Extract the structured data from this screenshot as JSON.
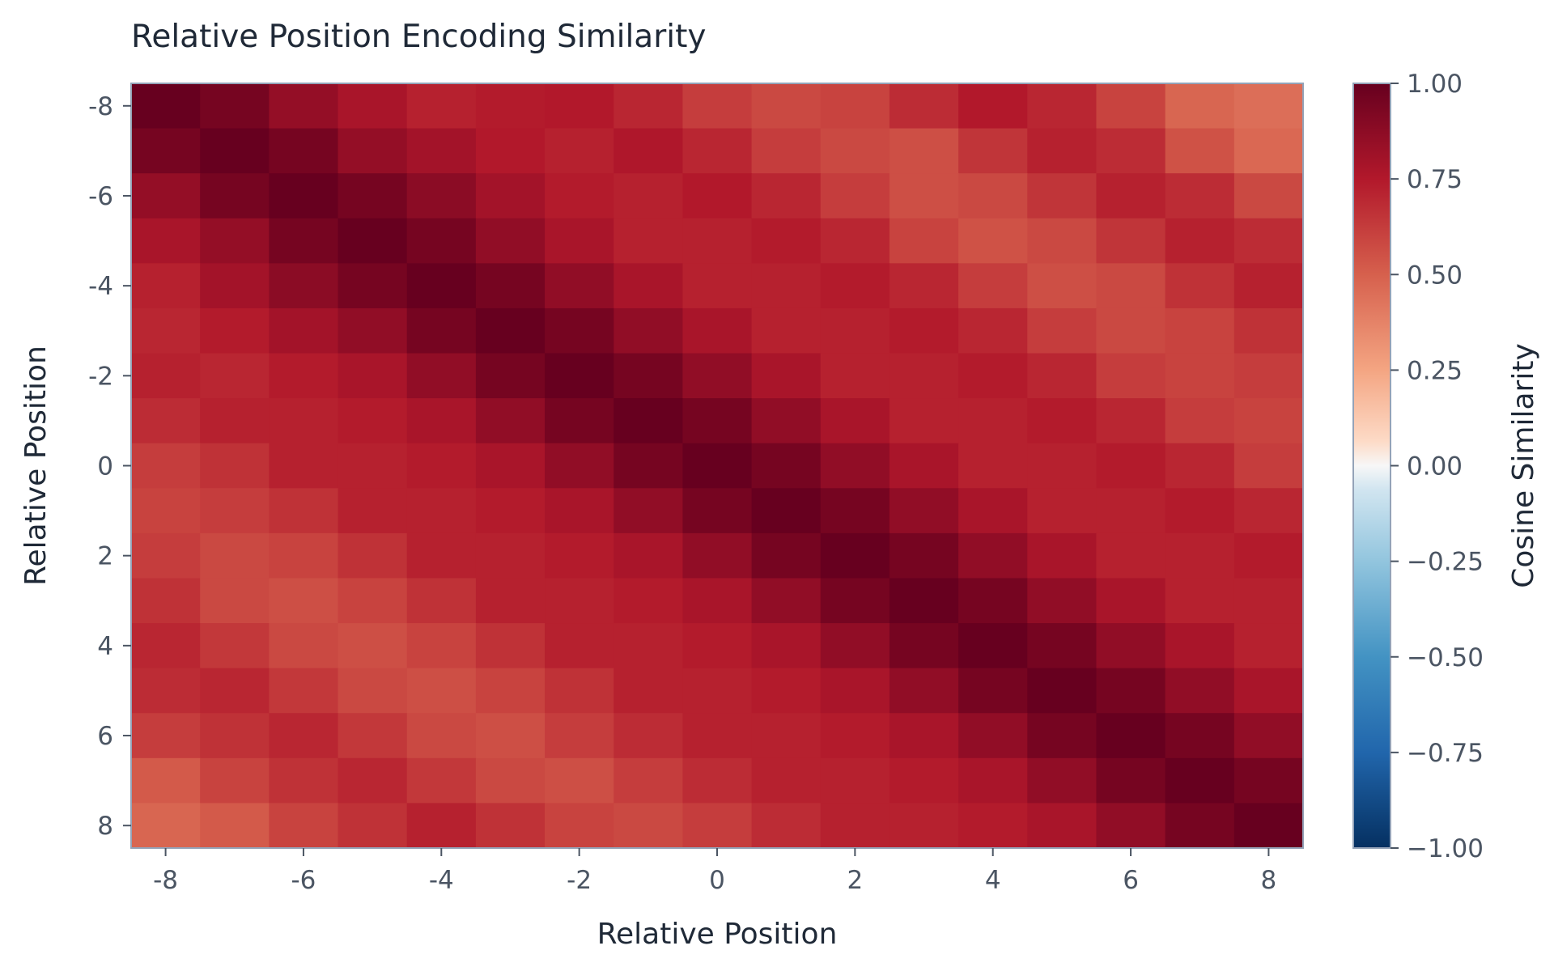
{
  "chart_data": {
    "type": "heatmap",
    "title": "Relative Position Encoding Similarity",
    "xlabel": "Relative Position",
    "ylabel": "Relative Position",
    "colorbar_label": "Cosine Similarity",
    "x": [
      -8,
      -7,
      -6,
      -5,
      -4,
      -3,
      -2,
      -1,
      0,
      1,
      2,
      3,
      4,
      5,
      6,
      7,
      8
    ],
    "y": [
      -8,
      -7,
      -6,
      -5,
      -4,
      -3,
      -2,
      -1,
      0,
      1,
      2,
      3,
      4,
      5,
      6,
      7,
      8
    ],
    "xticks": [
      "-8",
      "-6",
      "-4",
      "-2",
      "0",
      "2",
      "4",
      "6",
      "8"
    ],
    "yticks": [
      "-8",
      "-6",
      "-4",
      "-2",
      "0",
      "2",
      "4",
      "6",
      "8"
    ],
    "xtick_values": [
      -8,
      -6,
      -4,
      -2,
      0,
      2,
      4,
      6,
      8
    ],
    "ytick_values": [
      -8,
      -6,
      -4,
      -2,
      0,
      2,
      4,
      6,
      8
    ],
    "colorbar_ticks": [
      "1.00",
      "0.75",
      "0.50",
      "0.25",
      "0.00",
      "−0.25",
      "−0.50",
      "−0.75",
      "−1.00"
    ],
    "colorbar_tick_values": [
      1.0,
      0.75,
      0.5,
      0.25,
      0.0,
      -0.25,
      -0.5,
      -0.75,
      -1.0
    ],
    "vmin": -1.0,
    "vmax": 1.0,
    "colormap": "RdBu_r",
    "values": [
      [
        1.0,
        0.95,
        0.85,
        0.78,
        0.72,
        0.74,
        0.75,
        0.7,
        0.62,
        0.58,
        0.6,
        0.68,
        0.75,
        0.7,
        0.6,
        0.48,
        0.45
      ],
      [
        0.95,
        1.0,
        0.95,
        0.85,
        0.8,
        0.75,
        0.72,
        0.76,
        0.7,
        0.62,
        0.58,
        0.56,
        0.65,
        0.72,
        0.68,
        0.55,
        0.47
      ],
      [
        0.85,
        0.95,
        1.0,
        0.95,
        0.88,
        0.8,
        0.74,
        0.72,
        0.75,
        0.7,
        0.62,
        0.56,
        0.58,
        0.65,
        0.72,
        0.68,
        0.58
      ],
      [
        0.78,
        0.85,
        0.95,
        1.0,
        0.95,
        0.86,
        0.78,
        0.72,
        0.72,
        0.74,
        0.7,
        0.6,
        0.55,
        0.58,
        0.65,
        0.72,
        0.68
      ],
      [
        0.72,
        0.8,
        0.88,
        0.95,
        1.0,
        0.95,
        0.86,
        0.78,
        0.72,
        0.72,
        0.74,
        0.7,
        0.62,
        0.56,
        0.58,
        0.66,
        0.72
      ],
      [
        0.7,
        0.74,
        0.8,
        0.86,
        0.95,
        1.0,
        0.95,
        0.86,
        0.78,
        0.72,
        0.72,
        0.74,
        0.7,
        0.62,
        0.58,
        0.6,
        0.66
      ],
      [
        0.72,
        0.7,
        0.74,
        0.78,
        0.86,
        0.95,
        1.0,
        0.95,
        0.86,
        0.78,
        0.72,
        0.72,
        0.74,
        0.7,
        0.62,
        0.6,
        0.62
      ],
      [
        0.68,
        0.72,
        0.72,
        0.74,
        0.78,
        0.86,
        0.95,
        1.0,
        0.95,
        0.86,
        0.78,
        0.72,
        0.72,
        0.74,
        0.7,
        0.62,
        0.6
      ],
      [
        0.62,
        0.66,
        0.72,
        0.72,
        0.74,
        0.78,
        0.86,
        0.95,
        1.0,
        0.95,
        0.86,
        0.78,
        0.72,
        0.72,
        0.74,
        0.7,
        0.62
      ],
      [
        0.6,
        0.62,
        0.66,
        0.72,
        0.72,
        0.74,
        0.78,
        0.86,
        0.95,
        1.0,
        0.95,
        0.86,
        0.78,
        0.72,
        0.72,
        0.74,
        0.7
      ],
      [
        0.62,
        0.58,
        0.6,
        0.66,
        0.72,
        0.72,
        0.74,
        0.78,
        0.86,
        0.95,
        1.0,
        0.95,
        0.86,
        0.78,
        0.72,
        0.72,
        0.74
      ],
      [
        0.66,
        0.58,
        0.56,
        0.6,
        0.66,
        0.72,
        0.72,
        0.74,
        0.78,
        0.86,
        0.95,
        1.0,
        0.95,
        0.86,
        0.78,
        0.72,
        0.72
      ],
      [
        0.7,
        0.64,
        0.58,
        0.56,
        0.6,
        0.66,
        0.72,
        0.72,
        0.74,
        0.78,
        0.86,
        0.95,
        1.0,
        0.95,
        0.86,
        0.78,
        0.72
      ],
      [
        0.68,
        0.7,
        0.64,
        0.58,
        0.56,
        0.6,
        0.66,
        0.72,
        0.72,
        0.74,
        0.78,
        0.86,
        0.95,
        1.0,
        0.95,
        0.86,
        0.78
      ],
      [
        0.62,
        0.66,
        0.7,
        0.64,
        0.58,
        0.56,
        0.62,
        0.68,
        0.72,
        0.72,
        0.74,
        0.78,
        0.86,
        0.95,
        1.0,
        0.95,
        0.86
      ],
      [
        0.52,
        0.6,
        0.66,
        0.7,
        0.64,
        0.58,
        0.56,
        0.62,
        0.68,
        0.72,
        0.72,
        0.74,
        0.78,
        0.86,
        0.95,
        1.0,
        0.95
      ],
      [
        0.48,
        0.52,
        0.6,
        0.66,
        0.72,
        0.66,
        0.6,
        0.58,
        0.62,
        0.68,
        0.72,
        0.72,
        0.74,
        0.78,
        0.86,
        0.95,
        1.0
      ]
    ]
  }
}
